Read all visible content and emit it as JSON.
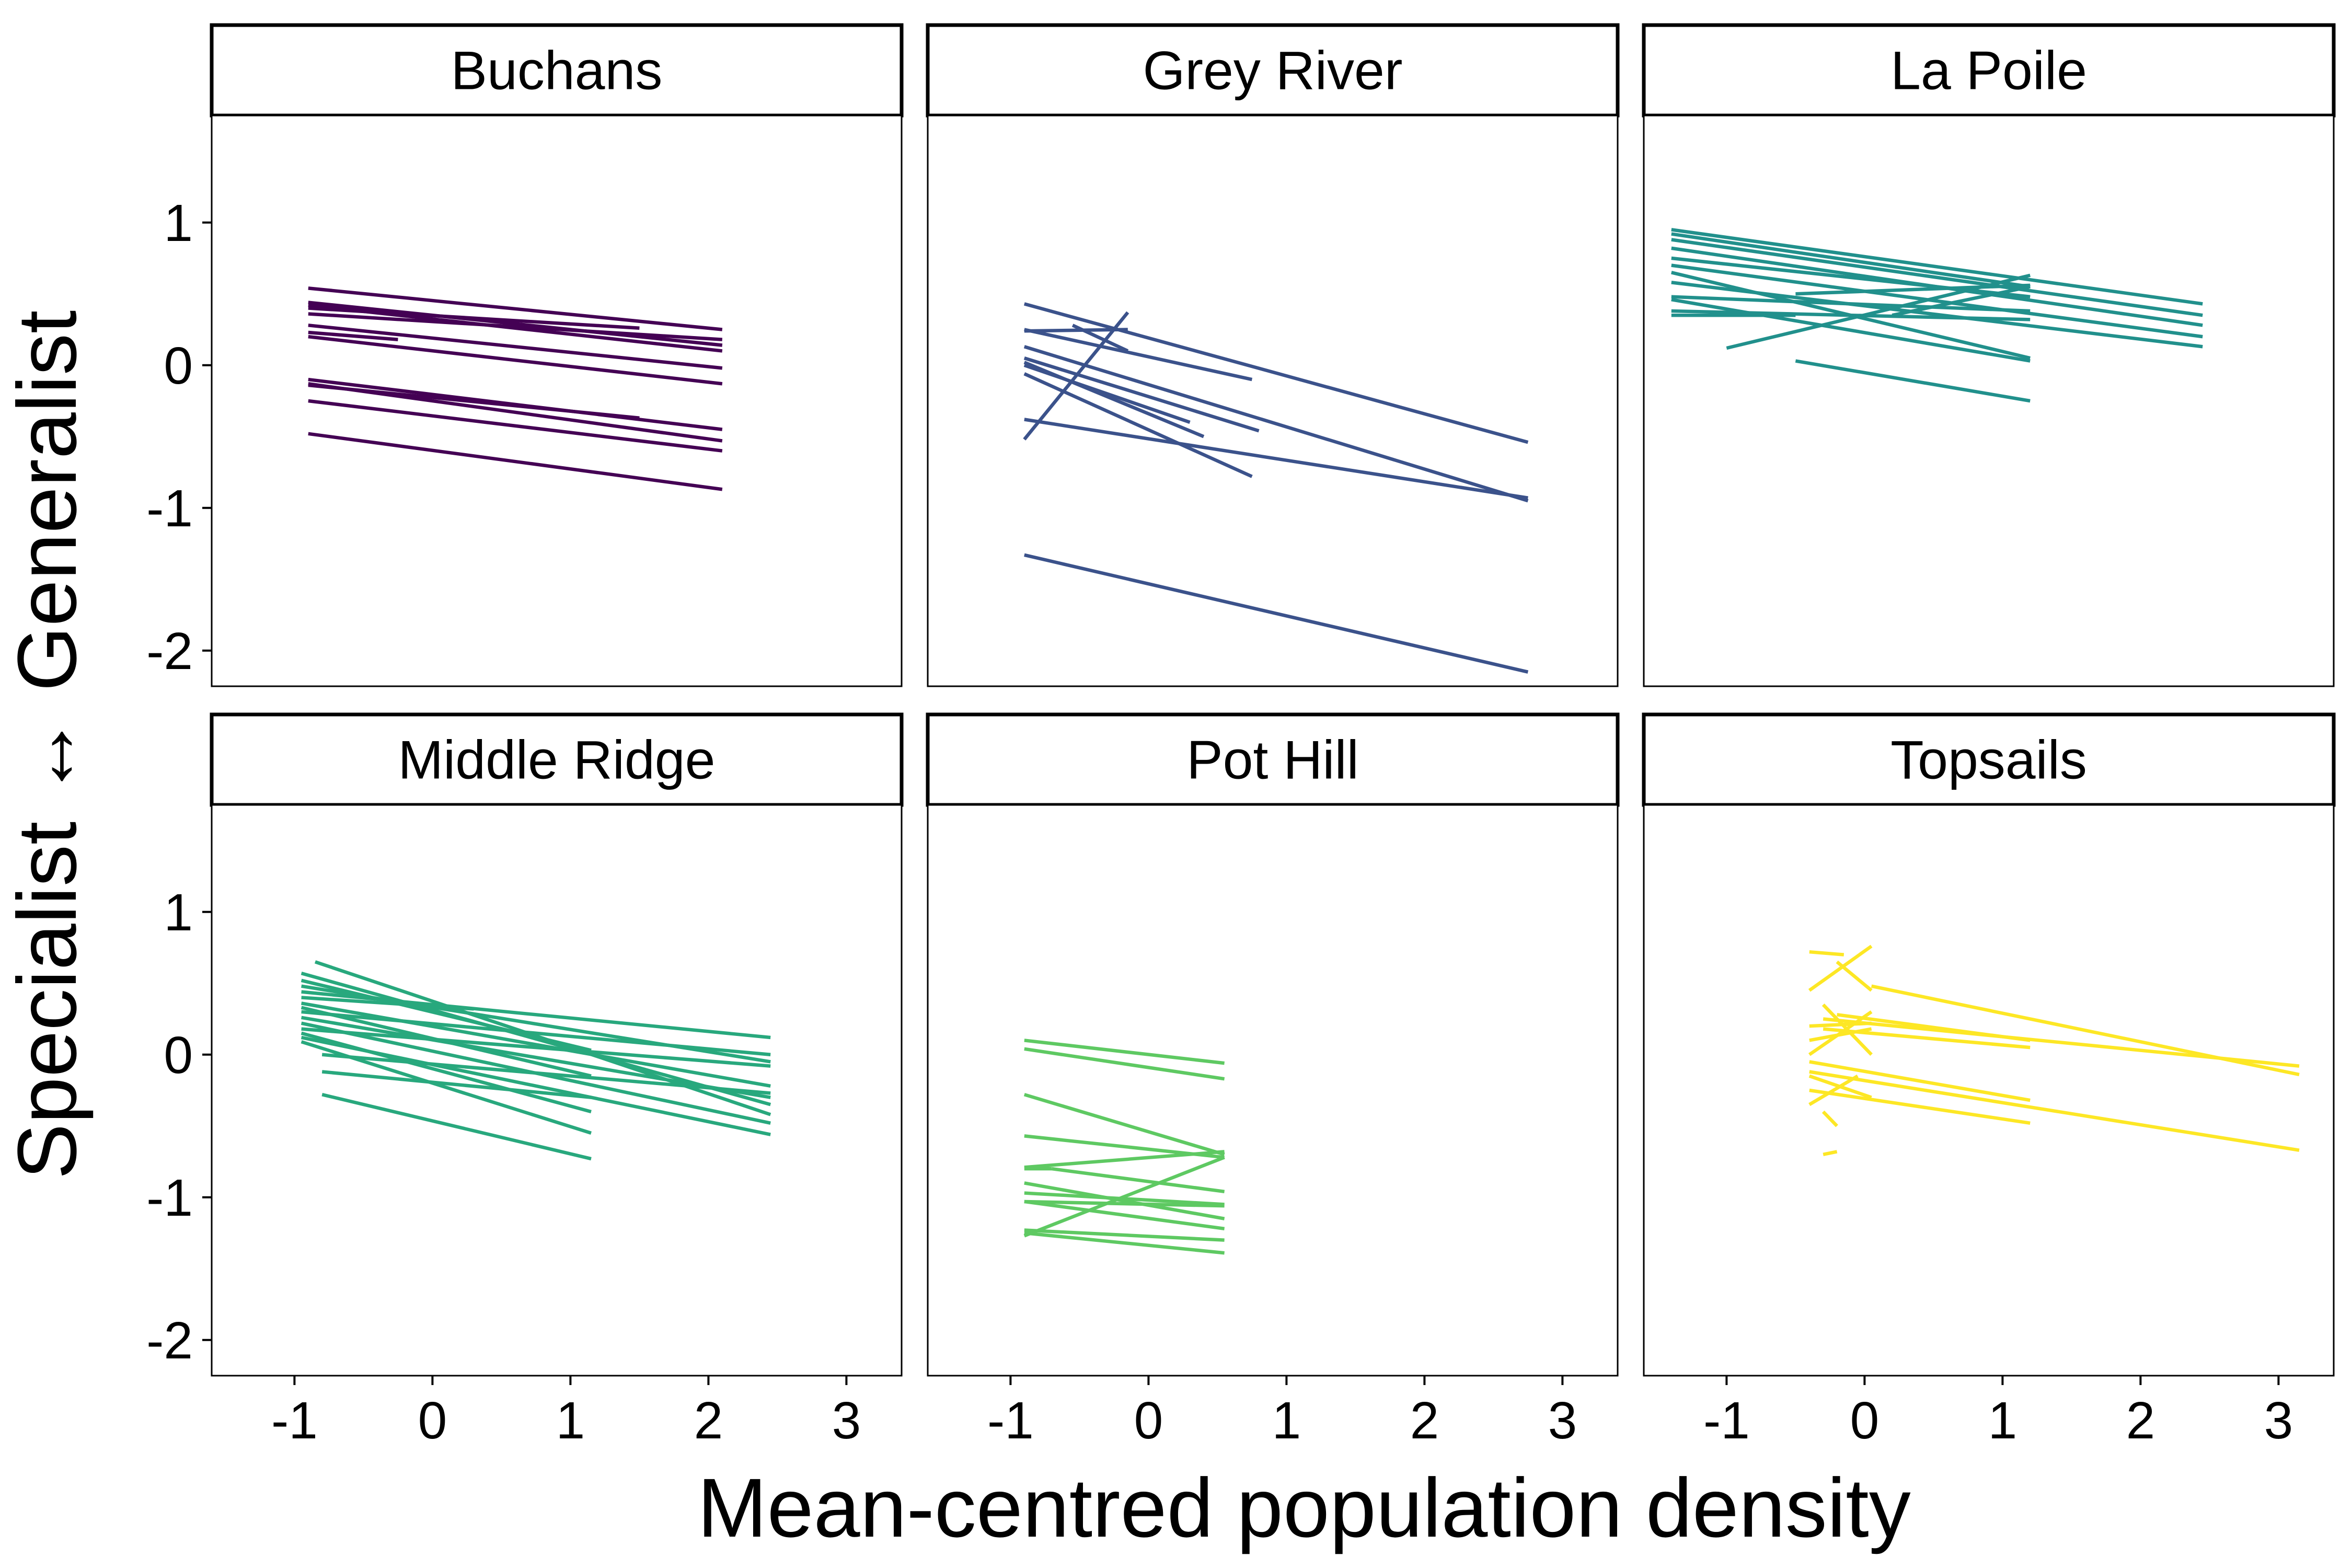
{
  "chart_data": {
    "type": "line",
    "xlabel": "Mean-centred population density",
    "ylabel": "Specialist ↔ Generalist",
    "xlim": [
      -1.6,
      3.4
    ],
    "ylim": [
      -2.25,
      1.75
    ],
    "x_ticks": [
      "-1",
      "0",
      "1",
      "2",
      "3"
    ],
    "y_ticks": [
      "1",
      "0",
      "-1",
      "-2"
    ],
    "x_tick_values": [
      -1,
      0,
      1,
      2,
      3
    ],
    "y_tick_values": [
      1,
      0,
      -1,
      -2
    ],
    "panels": [
      {
        "name": "Buchans",
        "color": "#440154",
        "segments": [
          [
            -0.9,
            0.54,
            2.1,
            0.25
          ],
          [
            -0.9,
            0.44,
            2.1,
            0.14
          ],
          [
            -0.9,
            0.42,
            2.1,
            0.1
          ],
          [
            -0.9,
            0.4,
            1.5,
            0.26
          ],
          [
            -0.9,
            0.36,
            2.1,
            0.18
          ],
          [
            -0.9,
            0.28,
            2.1,
            -0.02
          ],
          [
            -0.9,
            0.23,
            -0.25,
            0.18
          ],
          [
            -0.9,
            0.2,
            2.1,
            -0.13
          ],
          [
            -0.9,
            -0.1,
            2.1,
            -0.45
          ],
          [
            -0.9,
            -0.13,
            2.1,
            -0.53
          ],
          [
            -0.9,
            -0.14,
            1.5,
            -0.37
          ],
          [
            -0.9,
            -0.25,
            2.1,
            -0.6
          ],
          [
            -0.9,
            -0.48,
            2.1,
            -0.87
          ]
        ]
      },
      {
        "name": "Grey River",
        "color": "#3B528B",
        "segments": [
          [
            -0.9,
            0.43,
            2.75,
            -0.54
          ],
          [
            -0.9,
            0.25,
            0.75,
            -0.1
          ],
          [
            -0.9,
            0.24,
            -0.15,
            0.25
          ],
          [
            -0.9,
            0.13,
            2.75,
            -0.95
          ],
          [
            -0.9,
            0.05,
            0.8,
            -0.46
          ],
          [
            -0.9,
            0.02,
            0.4,
            -0.5
          ],
          [
            -0.9,
            -0.06,
            0.75,
            -0.78
          ],
          [
            -0.9,
            -0.38,
            2.75,
            -0.93
          ],
          [
            -0.9,
            -0.52,
            -0.15,
            0.37
          ],
          [
            -0.9,
            -1.33,
            2.75,
            -2.15
          ],
          [
            -0.55,
            0.28,
            -0.15,
            0.1
          ],
          [
            -0.9,
            0.0,
            0.3,
            -0.4
          ]
        ]
      },
      {
        "name": "La Poile",
        "color": "#21908C",
        "segments": [
          [
            -1.4,
            0.95,
            2.45,
            0.43
          ],
          [
            -1.4,
            0.92,
            1.2,
            0.55
          ],
          [
            -1.4,
            0.88,
            2.45,
            0.35
          ],
          [
            -1.4,
            0.82,
            2.45,
            0.28
          ],
          [
            -1.4,
            0.75,
            1.2,
            0.48
          ],
          [
            -1.4,
            0.7,
            2.45,
            0.2
          ],
          [
            -1.4,
            0.65,
            1.2,
            0.05
          ],
          [
            -1.4,
            0.58,
            2.45,
            0.13
          ],
          [
            -1.4,
            0.48,
            1.2,
            0.38
          ],
          [
            -1.4,
            0.46,
            1.2,
            0.03
          ],
          [
            -1.4,
            0.38,
            1.2,
            0.32
          ],
          [
            -1.4,
            0.35,
            -0.5,
            0.35
          ],
          [
            -1.0,
            0.12,
            1.2,
            0.63
          ],
          [
            -0.5,
            0.03,
            1.2,
            -0.25
          ],
          [
            -0.5,
            0.5,
            1.2,
            0.56
          ],
          [
            0.2,
            0.35,
            1.2,
            0.55
          ]
        ]
      },
      {
        "name": "Middle Ridge",
        "color": "#28A87D",
        "segments": [
          [
            -0.85,
            0.65,
            2.45,
            -0.42
          ],
          [
            -0.95,
            0.57,
            2.45,
            -0.35
          ],
          [
            -0.95,
            0.52,
            1.15,
            0.03
          ],
          [
            -0.95,
            0.48,
            2.45,
            -0.05
          ],
          [
            -0.95,
            0.44,
            2.45,
            0.12
          ],
          [
            -0.95,
            0.4,
            0.3,
            0.32
          ],
          [
            -0.95,
            0.36,
            2.45,
            -0.22
          ],
          [
            -0.95,
            0.33,
            1.15,
            -0.15
          ],
          [
            -0.95,
            0.3,
            2.45,
            0.0
          ],
          [
            -0.95,
            0.26,
            2.45,
            -0.3
          ],
          [
            -0.95,
            0.22,
            2.45,
            -0.48
          ],
          [
            -0.95,
            0.18,
            2.45,
            -0.08
          ],
          [
            -0.95,
            0.15,
            1.15,
            -0.4
          ],
          [
            -0.95,
            0.12,
            2.45,
            -0.56
          ],
          [
            -0.95,
            0.09,
            1.15,
            -0.55
          ],
          [
            -0.8,
            0.0,
            2.45,
            -0.27
          ],
          [
            -0.8,
            -0.12,
            1.15,
            -0.3
          ],
          [
            -0.8,
            -0.28,
            1.15,
            -0.73
          ]
        ]
      },
      {
        "name": "Pot Hill",
        "color": "#5EC962",
        "segments": [
          [
            -0.9,
            0.1,
            0.55,
            -0.06
          ],
          [
            -0.9,
            0.04,
            0.55,
            -0.17
          ],
          [
            -0.9,
            -0.28,
            0.55,
            -0.7
          ],
          [
            -0.9,
            -0.57,
            0.55,
            -0.72
          ],
          [
            -0.9,
            -0.79,
            0.55,
            -0.68
          ],
          [
            -0.9,
            -0.8,
            -0.7,
            -0.8
          ],
          [
            -0.9,
            -0.9,
            0.55,
            -1.15
          ],
          [
            -0.9,
            -0.97,
            0.55,
            -1.05
          ],
          [
            -0.9,
            -1.03,
            0.55,
            -1.06
          ],
          [
            -0.9,
            -1.03,
            0.55,
            -1.22
          ],
          [
            -0.9,
            -1.23,
            0.55,
            -1.3
          ],
          [
            -0.9,
            -1.25,
            0.55,
            -1.39
          ],
          [
            -0.9,
            -1.27,
            0.55,
            -0.72
          ],
          [
            -0.7,
            -0.8,
            0.55,
            -0.96
          ]
        ]
      },
      {
        "name": "Topsails",
        "color": "#FDE725",
        "segments": [
          [
            -0.4,
            0.72,
            -0.15,
            0.7
          ],
          [
            -0.4,
            0.45,
            0.05,
            0.76
          ],
          [
            -0.2,
            0.65,
            0.05,
            0.45
          ],
          [
            -0.2,
            0.28,
            1.2,
            0.1
          ],
          [
            -0.3,
            0.25,
            3.15,
            -0.08
          ],
          [
            0.05,
            0.48,
            3.15,
            -0.14
          ],
          [
            -0.3,
            0.18,
            1.2,
            0.05
          ],
          [
            -0.4,
            0.0,
            0.05,
            0.3
          ],
          [
            -0.4,
            0.1,
            0.05,
            0.18
          ],
          [
            -0.4,
            -0.05,
            1.2,
            -0.32
          ],
          [
            -0.4,
            -0.12,
            3.15,
            -0.67
          ],
          [
            -0.4,
            -0.15,
            0.05,
            -0.3
          ],
          [
            -0.4,
            -0.25,
            1.2,
            -0.48
          ],
          [
            -0.4,
            -0.35,
            -0.05,
            -0.15
          ],
          [
            -0.3,
            -0.4,
            -0.2,
            -0.5
          ],
          [
            -0.3,
            -0.7,
            -0.2,
            -0.68
          ],
          [
            -0.4,
            0.2,
            0.05,
            0.22
          ],
          [
            -0.3,
            0.35,
            0.05,
            0.0
          ]
        ]
      }
    ]
  }
}
